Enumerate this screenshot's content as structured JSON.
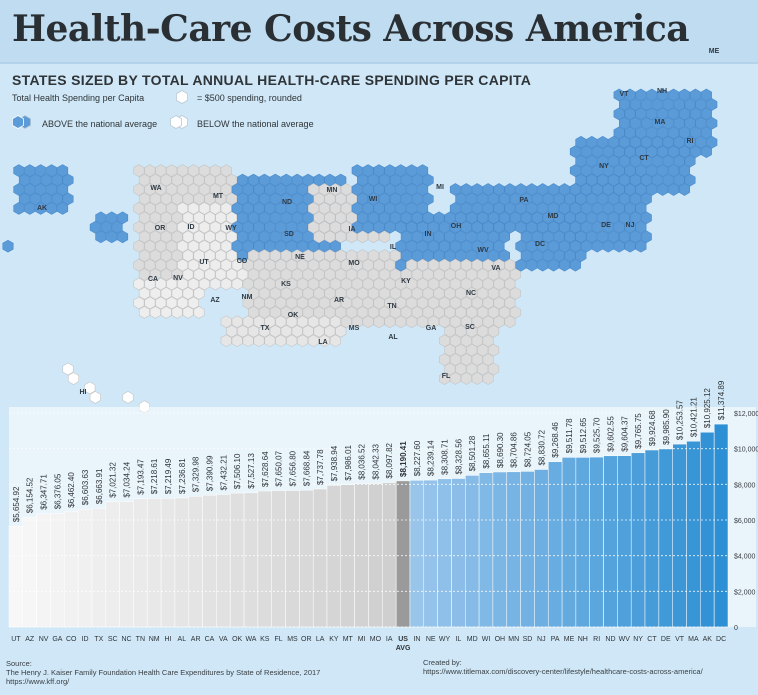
{
  "title": "Health-Care Costs Across America",
  "subtitle": "STATES SIZED BY TOTAL ANNUAL HEALTH-CARE SPENDING PER CAPITA",
  "legend": {
    "metric": "Total Health Spending per Capita",
    "unit": "= $500 spending, rounded",
    "above": "ABOVE the national average",
    "below": "BELOW the national average"
  },
  "colors": {
    "above": "#5b9bd8",
    "below": "#dcdcdc",
    "background": "#cfe7f6",
    "avg_bar": "#9a9a9a"
  },
  "map": {
    "labels": [
      "ME",
      "VT",
      "NH",
      "MA",
      "RI",
      "CT",
      "NY",
      "AK",
      "NJ",
      "DE",
      "MD",
      "DC",
      "PA",
      "WV",
      "VA",
      "MI",
      "WI",
      "MN",
      "ND",
      "SD",
      "NE",
      "IA",
      "IL",
      "IN",
      "OH",
      "WA",
      "MT",
      "OR",
      "ID",
      "WY",
      "CO",
      "UT",
      "NV",
      "CA",
      "AZ",
      "NM",
      "KS",
      "MO",
      "KY",
      "TN",
      "NC",
      "SC",
      "GA",
      "AL",
      "MS",
      "AR",
      "OK",
      "TX",
      "LA",
      "FL",
      "HI"
    ]
  },
  "chart_data": {
    "type": "bar",
    "categories": [
      "UT",
      "AZ",
      "NV",
      "GA",
      "CO",
      "ID",
      "TX",
      "SC",
      "NC",
      "TN",
      "NM",
      "HI",
      "AL",
      "AR",
      "CA",
      "VA",
      "OK",
      "WA",
      "KS",
      "FL",
      "MS",
      "OR",
      "LA",
      "KY",
      "MT",
      "MI",
      "MO",
      "IA",
      "US AVG",
      "IN",
      "NE",
      "WY",
      "IL",
      "MD",
      "WI",
      "OH",
      "MN",
      "SD",
      "NJ",
      "PA",
      "ME",
      "NH",
      "RI",
      "ND",
      "WV",
      "NY",
      "CT",
      "DE",
      "VT",
      "MA",
      "AK",
      "DC"
    ],
    "values": [
      5654.92,
      6154.52,
      6347.71,
      6376.05,
      6462.4,
      6603.63,
      6663.91,
      7021.32,
      7034.24,
      7193.47,
      7218.61,
      7219.49,
      7236.81,
      7329.98,
      7390.99,
      7432.21,
      7506.1,
      7527.13,
      7628.64,
      7650.07,
      7656.8,
      7668.84,
      7737.78,
      7938.94,
      7986.01,
      8036.52,
      8042.33,
      8097.82,
      8190.41,
      8227.6,
      8239.14,
      8308.71,
      8328.56,
      8501.28,
      8655.11,
      8690.3,
      8704.86,
      8724.05,
      8830.72,
      9268.46,
      9511.78,
      9512.65,
      9525.7,
      9602.55,
      9604.37,
      9765.75,
      9924.68,
      9985.9,
      10253.57,
      10421.21,
      10925.12,
      11374.89
    ],
    "value_labels": [
      "$5,654.92",
      "$6,154.52",
      "$6,347.71",
      "$6,376.05",
      "$6,462.40",
      "$6,603.63",
      "$6,663.91",
      "$7,021.32",
      "$7,034.24",
      "$7,193.47",
      "$7,218.61",
      "$7,219.49",
      "$7,236.81",
      "$7,329.98",
      "$7,390.99",
      "$7,432.21",
      "$7,506.10",
      "$7,527.13",
      "$7,628.64",
      "$7,650.07",
      "$7,656.80",
      "$7,668.84",
      "$7,737.78",
      "$7,938.94",
      "$7,986.01",
      "$8,036.52",
      "$8,042.33",
      "$8,097.82",
      "$8,190.41",
      "$8,227.60",
      "$8,239.14",
      "$8,308.71",
      "$8,328.56",
      "$8,501.28",
      "$8,655.11",
      "$8,690.30",
      "$8,704.86",
      "$8,724.05",
      "$8,830.72",
      "$9,268.46",
      "$9,511.78",
      "$9,512.65",
      "$9,525.70",
      "$9,602.55",
      "$9,604.37",
      "$9,765.75",
      "$9,924.68",
      "$9,985.90",
      "$10,253.57",
      "$10,421.21",
      "$10,925.12",
      "$11,374.89"
    ],
    "yticks": [
      "$12,000",
      "$10,000",
      "$8,000",
      "$6,000",
      "$4,000",
      "$2,000",
      "0"
    ],
    "ylim": [
      0,
      12000
    ],
    "average_category": "US AVG",
    "grid": true
  },
  "source": {
    "label": "Source:",
    "text": "The Henry J. Kaiser Family Foundation Health Care Expenditures by State of Residence, 2017",
    "url": "https://www.kff.org/"
  },
  "credit": {
    "label": "Created by:",
    "url": "https://www.titlemax.com/discovery-center/lifestyle/healthcare-costs-across-america/"
  }
}
